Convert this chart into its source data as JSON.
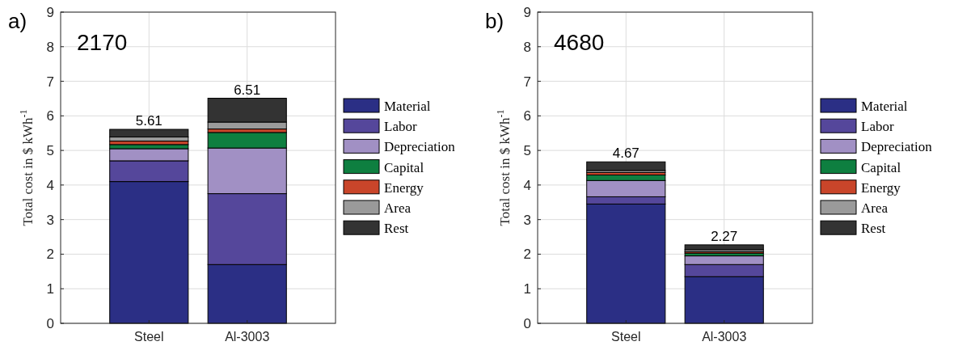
{
  "chart_data": [
    {
      "type": "bar",
      "stacked": true,
      "annotations": [
        "a)",
        "2170"
      ],
      "ylabel": "Total cost in $ kWh$^{-1}$",
      "categories": [
        "Steel",
        "Al-3003"
      ],
      "ylim": [
        0,
        9
      ],
      "yticks": [
        0,
        1,
        2,
        3,
        4,
        5,
        6,
        7,
        8,
        9
      ],
      "grid": true,
      "legend": "right",
      "totals": [
        "5.61",
        "6.51"
      ],
      "series": [
        {
          "name": "Material",
          "color": "#2b2f85",
          "values": [
            4.1,
            1.7
          ]
        },
        {
          "name": "Labor",
          "color": "#55479b",
          "values": [
            0.6,
            2.05
          ]
        },
        {
          "name": "Depreciation",
          "color": "#a190c4",
          "values": [
            0.35,
            1.32
          ]
        },
        {
          "name": "Capital",
          "color": "#0e7f40",
          "values": [
            0.12,
            0.45
          ]
        },
        {
          "name": "Energy",
          "color": "#c9452a",
          "values": [
            0.1,
            0.1
          ]
        },
        {
          "name": "Area",
          "color": "#9a9a9a",
          "values": [
            0.12,
            0.2
          ]
        },
        {
          "name": "Rest",
          "color": "#333333",
          "values": [
            0.22,
            0.69
          ]
        }
      ]
    },
    {
      "type": "bar",
      "stacked": true,
      "annotations": [
        "b)",
        "4680"
      ],
      "ylabel": "Total cost in $ kWh$^{-1}$",
      "categories": [
        "Steel",
        "Al-3003"
      ],
      "ylim": [
        0,
        9
      ],
      "yticks": [
        0,
        1,
        2,
        3,
        4,
        5,
        6,
        7,
        8,
        9
      ],
      "grid": true,
      "legend": "right",
      "totals": [
        "4.67",
        "2.27"
      ],
      "series": [
        {
          "name": "Material",
          "color": "#2b2f85",
          "values": [
            3.45,
            1.35
          ]
        },
        {
          "name": "Labor",
          "color": "#55479b",
          "values": [
            0.21,
            0.35
          ]
        },
        {
          "name": "Depreciation",
          "color": "#a190c4",
          "values": [
            0.47,
            0.25
          ]
        },
        {
          "name": "Capital",
          "color": "#0e7f40",
          "values": [
            0.16,
            0.08
          ]
        },
        {
          "name": "Energy",
          "color": "#c9452a",
          "values": [
            0.07,
            0.04
          ]
        },
        {
          "name": "Area",
          "color": "#9a9a9a",
          "values": [
            0.06,
            0.06
          ]
        },
        {
          "name": "Rest",
          "color": "#333333",
          "values": [
            0.25,
            0.14
          ]
        }
      ]
    }
  ]
}
